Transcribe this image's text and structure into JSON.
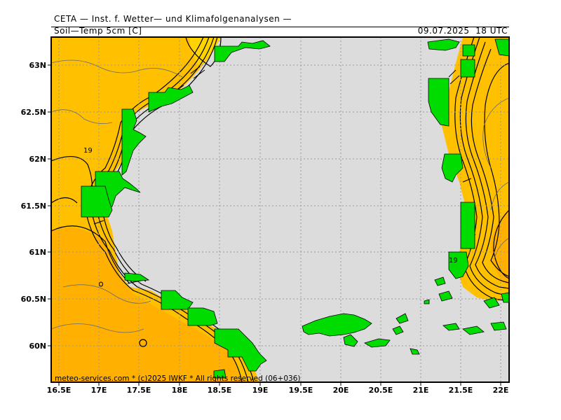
{
  "header": {
    "institute": "CETA — Inst. f. Wetter— und Klimafolgenanalysen —",
    "parameter": "Soil—Temp 5cm [C]",
    "valid_time": "09.07.2025  18 UTC"
  },
  "footer": {
    "credit": "meteo-services.com * (c)2025 IWKF * All rights reserved (06+036)"
  },
  "axes": {
    "lon_labels": [
      "16.5E",
      "17E",
      "17.5E",
      "18E",
      "18.5E",
      "19E",
      "19.5E",
      "20E",
      "20.5E",
      "21E",
      "21.5E",
      "22E"
    ],
    "lat_labels": [
      "63N",
      "62.5N",
      "62N",
      "61.5N",
      "61N",
      "60.5N",
      "60N"
    ]
  },
  "contour_labels": [
    "19",
    "19"
  ],
  "colors": {
    "sea": "#dcdcdc",
    "land_orange": "#ffc000",
    "land_dark_orange": "#ffb000",
    "land_yellow": "#ffd400",
    "islands_green": "#00dc00",
    "contour": "#000000",
    "grid": "#9a9a9a",
    "borders": "#6b6b6b"
  }
}
